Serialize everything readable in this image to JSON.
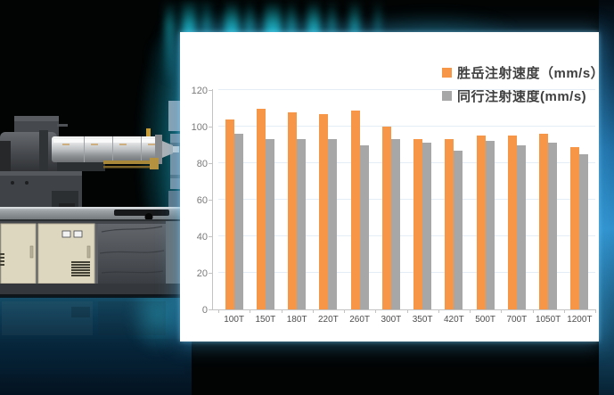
{
  "left_image": {
    "alt": "injection molding machine"
  },
  "background": {
    "accent_teal": "#14c3d0",
    "accent_blue": "#2f8fca"
  },
  "chart_panel": {
    "background": "#ffffff",
    "legend": {
      "position": "top-right",
      "items": [
        {
          "label": "胜岳注射速度（mm/s）",
          "color": "#F79646"
        },
        {
          "label": "同行注射速度(mm/s)",
          "color": "#A7A7A7"
        }
      ]
    }
  },
  "chart_data": {
    "type": "bar",
    "title": "",
    "xlabel": "",
    "ylabel": "",
    "categories": [
      "100T",
      "150T",
      "180T",
      "220T",
      "260T",
      "300T",
      "350T",
      "420T",
      "500T",
      "700T",
      "1050T",
      "1200T"
    ],
    "series": [
      {
        "name": "胜岳注射速度（mm/s）",
        "color": "#F79646",
        "values": [
          104,
          110,
          108,
          107,
          109,
          100,
          93,
          93,
          95,
          95,
          96,
          89
        ]
      },
      {
        "name": "同行注射速度(mm/s)",
        "color": "#A7A7A7",
        "values": [
          96,
          93,
          93,
          93,
          90,
          93,
          91,
          87,
          92,
          90,
          91,
          85
        ]
      }
    ],
    "ylim": [
      0,
      120
    ],
    "yticks": [
      0,
      20,
      40,
      60,
      80,
      100,
      120
    ],
    "grid": true,
    "gridline_color": "#e4edf6",
    "axis_color": "#c3c3c3",
    "legend_position": "top-right"
  }
}
